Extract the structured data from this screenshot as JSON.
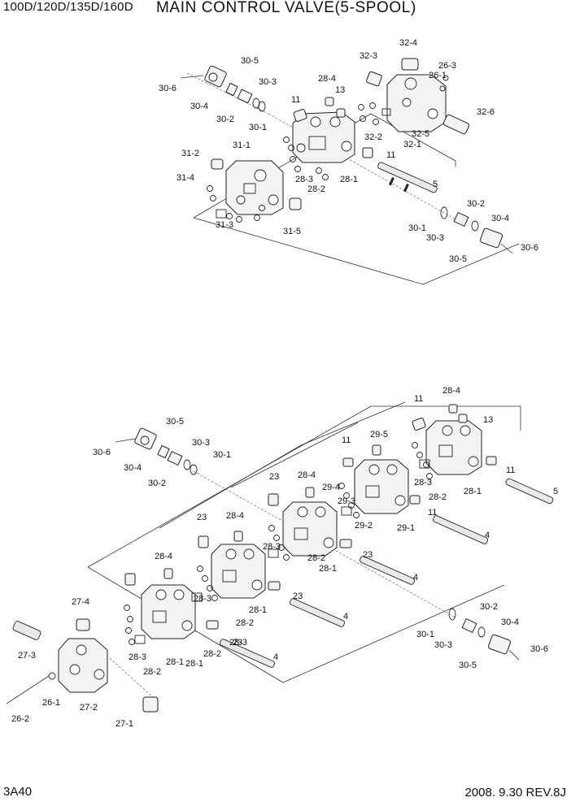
{
  "header": {
    "model": "100D/120D/135D/160D",
    "title": "MAIN CONTROL VALVE(5-SPOOL)"
  },
  "footer": {
    "page": "3A40",
    "revision": "2008. 9.30  REV.8J"
  },
  "callouts": {
    "top": [
      "30-5",
      "30-6",
      "30-3",
      "30-4",
      "30-2",
      "30-1",
      "28-4",
      "13",
      "11",
      "32-3",
      "32-4",
      "26-3",
      "26-1",
      "32-6",
      "32-2",
      "32-5",
      "32-1",
      "11",
      "31-1",
      "31-2",
      "31-4",
      "28-3",
      "28-2",
      "28-1",
      "5",
      "31-3",
      "31-5",
      "30-2",
      "30-1",
      "30-3",
      "30-4",
      "30-5",
      "30-6"
    ],
    "bottom": [
      "11",
      "28-4",
      "13",
      "30-5",
      "30-3",
      "30-1",
      "30-6",
      "30-4",
      "30-2",
      "11",
      "29-5",
      "11",
      "28-3",
      "28-2",
      "28-1",
      "5",
      "23",
      "28-4",
      "29-4",
      "29-3",
      "11",
      "23",
      "28-4",
      "28-3",
      "28-2",
      "28-1",
      "29-2",
      "29-1",
      "4",
      "23",
      "28-4",
      "28-3",
      "28-2",
      "23",
      "28-1",
      "4",
      "27-4",
      "28-3",
      "28-1",
      "28-2",
      "23",
      "4",
      "30-2",
      "30-4",
      "30-1",
      "30-3",
      "30-6",
      "30-5",
      "27-3",
      "28-3",
      "28-2",
      "28-1",
      "4",
      "26-1",
      "26-2",
      "27-2",
      "27-1"
    ]
  }
}
